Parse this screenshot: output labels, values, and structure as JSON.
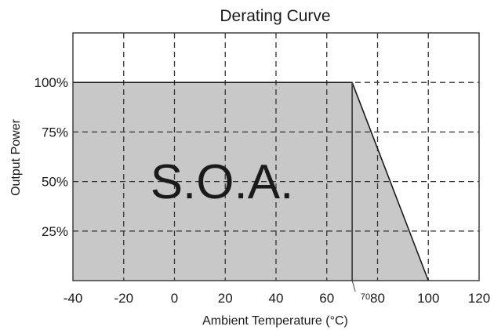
{
  "chart_data": {
    "type": "area",
    "title": "Derating Curve",
    "xlabel": "Ambient Temperature (°C)",
    "ylabel": "Output Power",
    "xlim": [
      -40,
      120
    ],
    "ylim": [
      0,
      125
    ],
    "x_ticks": [
      -40,
      -20,
      0,
      20,
      40,
      60,
      80,
      100,
      120
    ],
    "x_tick_labels": [
      "-40",
      "-20",
      "0",
      "20",
      "40",
      "60",
      "80",
      "100",
      "120"
    ],
    "y_ticks": [
      25,
      50,
      75,
      100
    ],
    "y_tick_labels": [
      "25%",
      "50%",
      "75%",
      "100%"
    ],
    "grid": true,
    "series": [
      {
        "x": [
          -40,
          70,
          100
        ],
        "y": [
          100,
          100,
          0
        ]
      }
    ],
    "fill_color": "#c8c8c8",
    "line_color": "#1a1a1a",
    "area_label": "S.O.A.",
    "marker": {
      "x": 70,
      "label": "70"
    }
  }
}
